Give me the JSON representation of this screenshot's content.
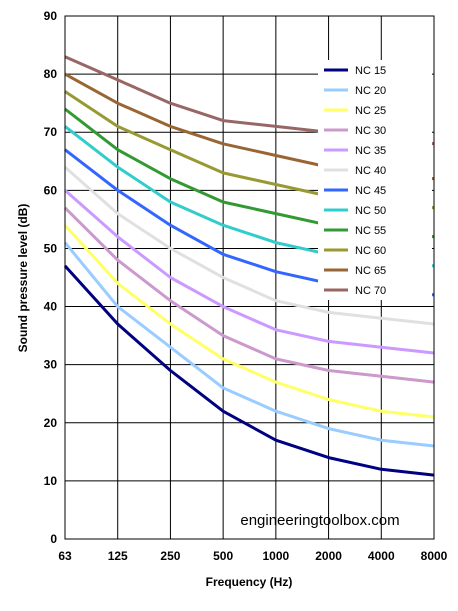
{
  "chart_data": {
    "type": "line",
    "title": "",
    "xlabel": "Frequency (Hz)",
    "ylabel": "Sound pressure level (dB)",
    "ylim": [
      0,
      90
    ],
    "y_ticks": [
      "0",
      "10",
      "20",
      "30",
      "40",
      "50",
      "60",
      "70",
      "80",
      "90"
    ],
    "categories": [
      "63",
      "125",
      "250",
      "500",
      "1000",
      "2000",
      "4000",
      "8000"
    ],
    "grid": true,
    "legend_position": "top-right",
    "source_text": "engineeringtoolbox.com",
    "series": [
      {
        "name": "NC 15",
        "color": "#000080",
        "values": [
          47,
          37,
          29,
          22,
          17,
          14,
          12,
          11
        ]
      },
      {
        "name": "NC 20",
        "color": "#99ccff",
        "values": [
          51,
          40,
          33,
          26,
          22,
          19,
          17,
          16
        ]
      },
      {
        "name": "NC 25",
        "color": "#ffff66",
        "values": [
          54,
          44,
          37,
          31,
          27,
          24,
          22,
          21
        ]
      },
      {
        "name": "NC 30",
        "color": "#cc99cc",
        "values": [
          57,
          48,
          41,
          35,
          31,
          29,
          28,
          27
        ]
      },
      {
        "name": "NC 35",
        "color": "#cc99ff",
        "values": [
          60,
          52,
          45,
          40,
          36,
          34,
          33,
          32
        ]
      },
      {
        "name": "NC 40",
        "color": "#e0e0e0",
        "values": [
          64,
          56,
          50,
          45,
          41,
          39,
          38,
          37
        ]
      },
      {
        "name": "NC 45",
        "color": "#3366ff",
        "values": [
          67,
          60,
          54,
          49,
          46,
          44,
          43,
          42
        ]
      },
      {
        "name": "NC 50",
        "color": "#33cccc",
        "values": [
          71,
          64,
          58,
          54,
          51,
          49,
          48,
          47
        ]
      },
      {
        "name": "NC 55",
        "color": "#339933",
        "values": [
          74,
          67,
          62,
          58,
          56,
          54,
          53,
          52
        ]
      },
      {
        "name": "NC 60",
        "color": "#999933",
        "values": [
          77,
          71,
          67,
          63,
          61,
          59,
          58,
          57
        ]
      },
      {
        "name": "NC 65",
        "color": "#996633",
        "values": [
          80,
          75,
          71,
          68,
          66,
          64,
          63,
          62
        ]
      },
      {
        "name": "NC 70",
        "color": "#996666",
        "values": [
          83,
          79,
          75,
          72,
          71,
          70,
          69,
          68
        ]
      }
    ]
  }
}
